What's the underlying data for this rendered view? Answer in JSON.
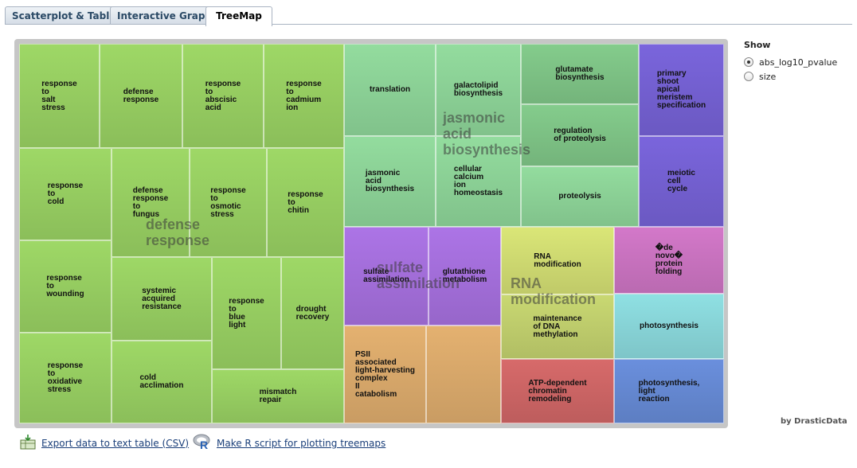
{
  "tabs": [
    {
      "label": "Scatterplot & Table",
      "active": false
    },
    {
      "label": "Interactive Graph",
      "active": false
    },
    {
      "label": "TreeMap",
      "active": true
    }
  ],
  "show": {
    "title": "Show",
    "options": [
      {
        "label": "abs_log10_pvalue",
        "selected": true
      },
      {
        "label": "size",
        "selected": false
      }
    ]
  },
  "credit": "by DrasticData",
  "links": {
    "export_csv": "Export data to text table (CSV)",
    "r_script": "Make R script for plotting treemaps"
  },
  "icons": {
    "export": "spreadsheet-download-icon",
    "r": "r-logo-icon"
  },
  "treemap": {
    "groups": [
      {
        "name": "defense\nresponse",
        "color": "#93cf5e"
      },
      {
        "name": "jasmonic\nacid\nbiosynthesis",
        "color": "#8fd79a"
      },
      {
        "name": "sulfate\nassimilation",
        "color": "#a46fe0"
      },
      {
        "name": "RNA\nmodification",
        "color": "#d8e276"
      }
    ],
    "cells": [
      {
        "label": "response\nto\nsalt\nstress",
        "color": "#9ed866"
      },
      {
        "label": "defense\nresponse",
        "color": "#9ed866"
      },
      {
        "label": "response\nto\nabscisic\nacid",
        "color": "#9ed866"
      },
      {
        "label": "response\nto\ncadmium\nion",
        "color": "#9ed866"
      },
      {
        "label": "response\nto\ncold",
        "color": "#9ed866"
      },
      {
        "label": "defense\nresponse\nto\nfungus",
        "color": "#9ed866"
      },
      {
        "label": "response\nto\nosmotic\nstress",
        "color": "#9ed866"
      },
      {
        "label": "response\nto\nchitin",
        "color": "#9ed866"
      },
      {
        "label": "response\nto\nwounding",
        "color": "#9ed866"
      },
      {
        "label": "systemic\nacquired\nresistance",
        "color": "#9ed866"
      },
      {
        "label": "response\nto\nblue\nlight",
        "color": "#9ed866"
      },
      {
        "label": "drought\nrecovery",
        "color": "#9ed866"
      },
      {
        "label": "response\nto\noxidative\nstress",
        "color": "#9ed866"
      },
      {
        "label": "cold\nacclimation",
        "color": "#9ed866"
      },
      {
        "label": "mismatch\nrepair",
        "color": "#9ed866"
      },
      {
        "label": "translation",
        "color": "#93dc9e"
      },
      {
        "label": "galactolipid\nbiosynthesis",
        "color": "#93dc9e"
      },
      {
        "label": "glutamate\nbiosynthesis",
        "color": "#84cc8c"
      },
      {
        "label": "jasmonic\nacid\nbiosynthesis",
        "color": "#93dc9e"
      },
      {
        "label": "cellular\ncalcium\nion\nhomeostasis",
        "color": "#93dc9e"
      },
      {
        "label": "regulation\nof proteolysis",
        "color": "#84cc8c"
      },
      {
        "label": "proteolysis",
        "color": "#93dc9e"
      },
      {
        "label": "primary\nshoot\napical\nmeristem\nspecification",
        "color": "#7a65dc"
      },
      {
        "label": "meiotic\ncell\ncycle",
        "color": "#7a65dc"
      },
      {
        "label": "sulfate\nassimilation",
        "color": "#ac74e6"
      },
      {
        "label": "glutathione\nmetabolism",
        "color": "#ac74e6"
      },
      {
        "label": "PSII\nassociated\nlight-harvesting\ncomplex\nII\ncatabolism",
        "color": "#e4b170"
      },
      {
        "label": "",
        "color": "#e4b170"
      },
      {
        "label": "RNA\nmodification",
        "color": "#dae677"
      },
      {
        "label": "maintenance\nof DNA\nmethylation",
        "color": "#c9d872"
      },
      {
        "label": "ATP-dependent\nchromatin\nremodeling",
        "color": "#d76a6a"
      },
      {
        "label": "�de\nnovo�\nprotein\nfolding",
        "color": "#d378c9"
      },
      {
        "label": "photosynthesis",
        "color": "#8fe0e3"
      },
      {
        "label": "photosynthesis,\nlight\nreaction",
        "color": "#6a8fdd"
      }
    ]
  }
}
